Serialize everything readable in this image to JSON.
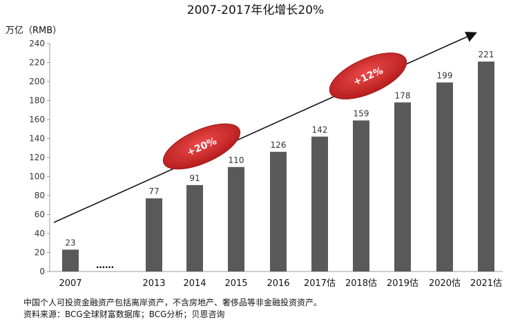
{
  "chart_data": {
    "type": "bar",
    "title": "2007-2017年化增长20%",
    "ylabel": "万亿（RMB）",
    "xlabel": "",
    "ylim": [
      0,
      240
    ],
    "yticks": [
      0,
      20,
      40,
      60,
      80,
      100,
      120,
      140,
      160,
      180,
      200,
      220,
      240
    ],
    "grid": false,
    "categories": [
      "2007",
      "2013",
      "2014",
      "2015",
      "2016",
      "2017估",
      "2018估",
      "2019估",
      "2020估",
      "2021估"
    ],
    "values": [
      23,
      77,
      91,
      110,
      126,
      142,
      159,
      178,
      199,
      221
    ],
    "gap_marker": "……",
    "bar_color": "#595959",
    "annotations": [
      {
        "text": "+20%",
        "color": "#d42a2a"
      },
      {
        "text": "+12%",
        "color": "#d42a2a"
      }
    ],
    "footnotes": [
      "中国个人可投资金融资产包括离岸资产，不含房地产、奢侈品等非金融投资资产。",
      "资料来源：BCG全球财富数据库；BCG分析；贝恩咨询"
    ]
  }
}
